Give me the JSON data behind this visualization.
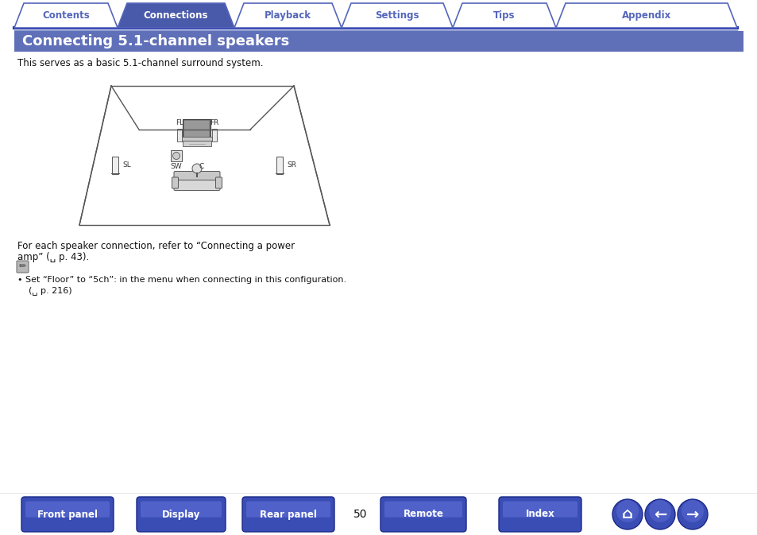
{
  "bg_color": "#ffffff",
  "nav_tabs": [
    "Contents",
    "Connections",
    "Playback",
    "Settings",
    "Tips",
    "Appendix"
  ],
  "active_tab": "Connections",
  "active_tab_color": "#4a5aaa",
  "inactive_tab_color": "#ffffff",
  "tab_border_color": "#5566bb",
  "nav_bar_line_color": "#2233aa",
  "title_text": "Connecting 5.1-channel speakers",
  "title_bg": "#6070b8",
  "title_text_color": "#ffffff",
  "subtitle": "This serves as a basic 5.1-channel surround system.",
  "body_text1a": "For each speaker connection, refer to “Connecting a power",
  "body_text1b": "amp” (␣ p. 43).",
  "note_line1": "• Set “Floor” to “5ch”: in the menu when connecting in this configuration.",
  "note_line2": "    (␣ p. 216)",
  "bottom_buttons": [
    "Front panel",
    "Display",
    "Rear panel",
    "Remote",
    "Index"
  ],
  "page_number": "50",
  "bottom_btn_color": "#3a4db5",
  "bottom_btn_text_color": "#ffffff",
  "diagram_line_color": "#555555",
  "diagram_fill_color": "#f0f0f0"
}
